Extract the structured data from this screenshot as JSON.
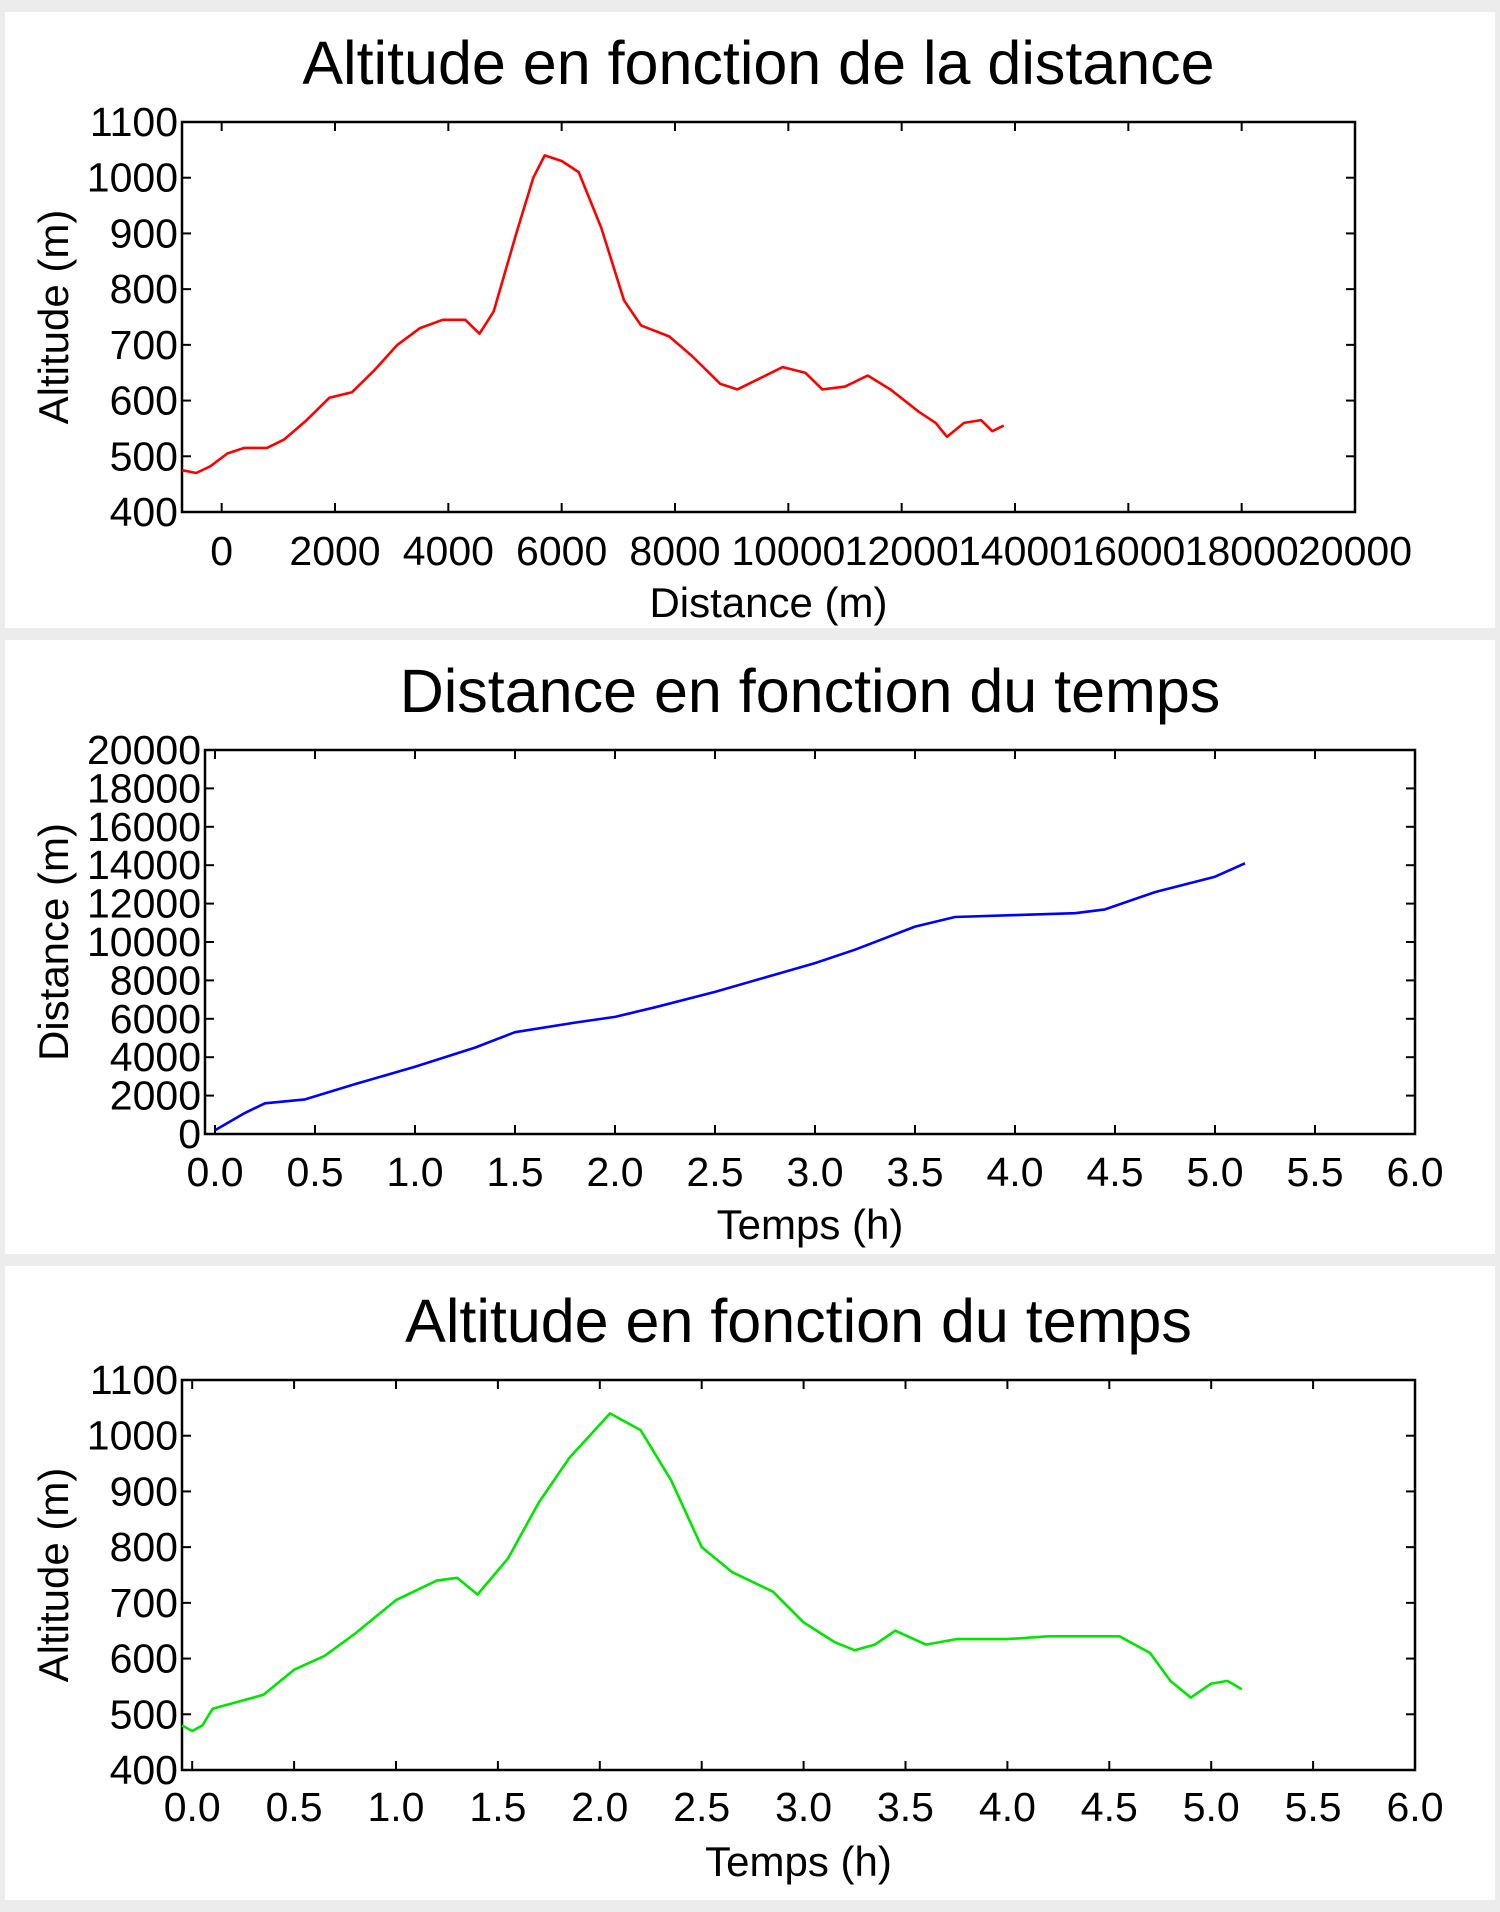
{
  "chart_data": [
    {
      "type": "line",
      "title": "Altitude en fonction de la distance",
      "xlabel": "Distance (m)",
      "ylabel": "Altitude (m)",
      "xlim": [
        -700,
        20000
      ],
      "ylim": [
        400,
        1100
      ],
      "xticks": [
        0,
        2000,
        4000,
        6000,
        8000,
        10000,
        12000,
        14000,
        16000,
        18000,
        20000
      ],
      "xtick_labels": [
        "0",
        "2000",
        "4000",
        "6000",
        "8000",
        "10000",
        "12000",
        "14000",
        "16000",
        "18000",
        "20000"
      ],
      "yticks": [
        400,
        500,
        600,
        700,
        800,
        900,
        1000,
        1100
      ],
      "ytick_labels": [
        "400",
        "500",
        "600",
        "700",
        "800",
        "900",
        "1000",
        "1100"
      ],
      "grid": false,
      "color": "#ff0000",
      "series": [
        {
          "x": [
            -700,
            -450,
            -200,
            100,
            400,
            800,
            1100,
            1500,
            1900,
            2300,
            2700,
            3100,
            3500,
            3900,
            4300,
            4550,
            4800,
            5200,
            5500,
            5700,
            6000,
            6300,
            6700,
            7100,
            7400,
            7900,
            8300,
            8800,
            9100,
            9500,
            9900,
            10300,
            10600,
            11000,
            11400,
            11800,
            12300,
            12600,
            12800,
            13100,
            13400,
            13600,
            13800
          ],
          "y": [
            475,
            470,
            482,
            505,
            515,
            515,
            530,
            565,
            605,
            615,
            655,
            700,
            730,
            745,
            745,
            720,
            760,
            900,
            1000,
            1040,
            1030,
            1010,
            910,
            780,
            735,
            715,
            680,
            630,
            620,
            640,
            660,
            650,
            620,
            625,
            645,
            620,
            580,
            560,
            535,
            560,
            565,
            545,
            555
          ]
        }
      ]
    },
    {
      "type": "line",
      "title": "Distance en fonction du temps",
      "xlabel": "Temps (h)",
      "ylabel": "Distance (m)",
      "xlim": [
        -0.05,
        6.0
      ],
      "ylim": [
        0,
        20000
      ],
      "xticks": [
        0,
        0.5,
        1,
        1.5,
        2,
        2.5,
        3,
        3.5,
        4,
        4.5,
        5,
        5.5,
        6
      ],
      "xtick_labels": [
        "0.0",
        "0.5",
        "1.0",
        "1.5",
        "2.0",
        "2.5",
        "3.0",
        "3.5",
        "4.0",
        "4.5",
        "5.0",
        "5.5",
        "6.0"
      ],
      "yticks": [
        0,
        2000,
        4000,
        6000,
        8000,
        10000,
        12000,
        14000,
        16000,
        18000,
        20000
      ],
      "ytick_labels": [
        "0",
        "2000",
        "4000",
        "6000",
        "8000",
        "10000",
        "12000",
        "14000",
        "16000",
        "18000",
        "20000"
      ],
      "grid": false,
      "color": "#0000ff",
      "series": [
        {
          "x": [
            0.0,
            0.15,
            0.25,
            0.45,
            0.7,
            1.0,
            1.3,
            1.5,
            1.8,
            2.0,
            2.2,
            2.5,
            2.8,
            3.0,
            3.2,
            3.5,
            3.7,
            4.0,
            4.3,
            4.45,
            4.7,
            5.0,
            5.15
          ],
          "y": [
            200,
            1100,
            1600,
            1800,
            2600,
            3500,
            4500,
            5300,
            5800,
            6100,
            6600,
            7400,
            8300,
            8900,
            9600,
            10800,
            11300,
            11400,
            11500,
            11700,
            12600,
            13400,
            14100
          ]
        }
      ]
    },
    {
      "type": "line",
      "title": "Altitude en fonction du temps",
      "xlabel": "Temps (h)",
      "ylabel": "Altitude (m)",
      "xlim": [
        -0.05,
        6.0
      ],
      "ylim": [
        400,
        1100
      ],
      "xticks": [
        0,
        0.5,
        1,
        1.5,
        2,
        2.5,
        3,
        3.5,
        4,
        4.5,
        5,
        5.5,
        6
      ],
      "xtick_labels": [
        "0.0",
        "0.5",
        "1.0",
        "1.5",
        "2.0",
        "2.5",
        "3.0",
        "3.5",
        "4.0",
        "4.5",
        "5.0",
        "5.5",
        "6.0"
      ],
      "yticks": [
        400,
        500,
        600,
        700,
        800,
        900,
        1000,
        1100
      ],
      "ytick_labels": [
        "400",
        "500",
        "600",
        "700",
        "800",
        "900",
        "1000",
        "1100"
      ],
      "grid": false,
      "color": "#00e600",
      "series": [
        {
          "x": [
            -0.05,
            0.0,
            0.05,
            0.1,
            0.2,
            0.35,
            0.5,
            0.65,
            0.8,
            1.0,
            1.2,
            1.3,
            1.4,
            1.55,
            1.7,
            1.85,
            1.95,
            2.05,
            2.2,
            2.35,
            2.5,
            2.65,
            2.85,
            3.0,
            3.15,
            3.25,
            3.35,
            3.45,
            3.6,
            3.75,
            4.0,
            4.2,
            4.4,
            4.55,
            4.7,
            4.8,
            4.9,
            5.0,
            5.08,
            5.15
          ],
          "y": [
            480,
            470,
            480,
            510,
            520,
            535,
            580,
            605,
            645,
            705,
            740,
            745,
            715,
            780,
            880,
            960,
            1000,
            1040,
            1010,
            920,
            800,
            755,
            720,
            665,
            630,
            615,
            625,
            650,
            625,
            635,
            635,
            640,
            640,
            640,
            610,
            560,
            530,
            555,
            560,
            545
          ]
        }
      ]
    }
  ]
}
